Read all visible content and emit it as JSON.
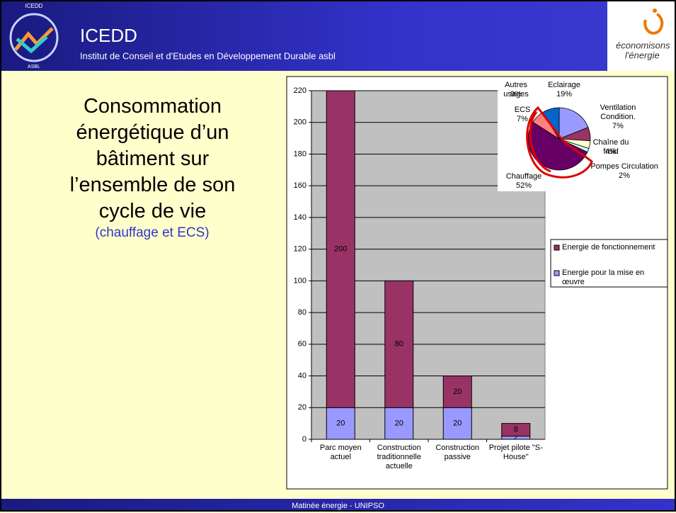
{
  "header": {
    "logo_top": "ICEDD",
    "logo_bottom": "ASBL",
    "title": "ICEDD",
    "subtitle": "Institut de Conseil et d'Etudes en Développement Durable asbl",
    "right_logo_1": "économisons",
    "right_logo_2": "l'énergie"
  },
  "slide": {
    "title": "Consommation énergétique d’un bâtiment sur l’ensemble de son cycle de vie",
    "subtitle": "(chauffage et ECS)"
  },
  "footer": "Matinée énergie - UNIPSO",
  "chart_data": [
    {
      "type": "bar",
      "stacked": true,
      "categories": [
        "Parc moyen actuel",
        "Construction traditionnelle actuelle",
        "Construction passive",
        "Projet pilote \"S-House\""
      ],
      "series": [
        {
          "name": "Energie pour la mise en œuvre",
          "color": "#9999ff",
          "values": [
            20,
            20,
            20,
            2
          ]
        },
        {
          "name": "Energie de fonctionnement",
          "color": "#993366",
          "values": [
            200,
            80,
            20,
            8
          ]
        }
      ],
      "ylim": [
        0,
        220
      ],
      "yticks": [
        0,
        20,
        40,
        60,
        80,
        100,
        120,
        140,
        160,
        180,
        200,
        220
      ],
      "grid": true,
      "legend": "right"
    },
    {
      "type": "pie",
      "categories": [
        "Eclairage",
        "Ventilation Condition.",
        "Chaîne du froid",
        "Pompes Circulation",
        "Chauffage",
        "ECS",
        "Autres usages"
      ],
      "values": [
        19,
        7,
        4,
        2,
        52,
        7,
        9
      ],
      "value_labels": [
        "19%",
        "7%",
        "4%",
        "2%",
        "52%",
        "7%",
        "9%"
      ],
      "colors": [
        "#9999ff",
        "#993366",
        "#ffffcc",
        "#ccffff",
        "#660066",
        "#ff8080",
        "#0066cc"
      ]
    }
  ]
}
